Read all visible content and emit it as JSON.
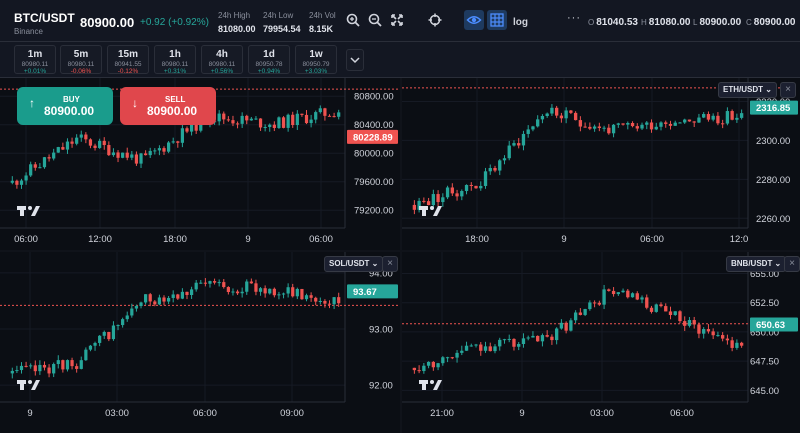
{
  "header": {
    "symbol": "BTC/USDT",
    "exchange": "Binance",
    "last_price": "80900.00",
    "change": "+0.92 (+0.92%)",
    "stats": [
      {
        "label": "24h High",
        "value": "81080.00"
      },
      {
        "label": "24h Low",
        "value": "79954.54"
      },
      {
        "label": "24h Vol",
        "value": "8.15K"
      }
    ],
    "toolbar": {
      "log_label": "log",
      "more_label": "···"
    },
    "ohlc": [
      {
        "key": "O",
        "value": "81040.53"
      },
      {
        "key": "H",
        "value": "81080.00"
      },
      {
        "key": "L",
        "value": "80900.00"
      },
      {
        "key": "C",
        "value": "80900.00"
      }
    ]
  },
  "timeframes": [
    {
      "label": "1m",
      "price": "80980.11",
      "change": "+0.01%",
      "positive": true
    },
    {
      "label": "5m",
      "price": "80980.11",
      "change": "-0.06%",
      "positive": false
    },
    {
      "label": "15m",
      "price": "80941.55",
      "change": "-0.12%",
      "positive": false
    },
    {
      "label": "1h",
      "price": "80980.11",
      "change": "+0.31%",
      "positive": true
    },
    {
      "label": "4h",
      "price": "80980.11",
      "change": "+0.56%",
      "positive": true
    },
    {
      "label": "1d",
      "price": "80950.78",
      "change": "+0.94%",
      "positive": true
    },
    {
      "label": "1w",
      "price": "80950.79",
      "change": "+3.03%",
      "positive": true
    }
  ],
  "trade": {
    "buy_label": "BUY",
    "buy_price": "80900.00",
    "sell_label": "SELL",
    "sell_price": "80900.00"
  },
  "colors": {
    "up": "#26a69a",
    "down": "#ef5350",
    "accent": "#2962ff"
  },
  "panels": [
    {
      "id": "btc",
      "symbol": "",
      "y_ticks": [
        "80800.00",
        "80400.00",
        "80000.00",
        "79600.00",
        "79200.00"
      ],
      "y_tick_values": [
        80800,
        80400,
        80000,
        79600,
        79200
      ],
      "x_ticks": [
        "06:00",
        "12:00",
        "18:00",
        "9",
        "06:00"
      ],
      "price_tag": "80228.89",
      "price_tag_value": 80228.89,
      "tag_color": "#ef5350",
      "ref_line_value": 80900,
      "ylim": [
        78950,
        81000
      ]
    },
    {
      "id": "eth",
      "symbol": "ETH/USDT",
      "y_ticks": [
        "2320.00",
        "2300.00",
        "2280.00",
        "2260.00"
      ],
      "y_tick_values": [
        2320,
        2300,
        2280,
        2260
      ],
      "x_ticks": [
        "18:00",
        "9",
        "06:00",
        "12:0"
      ],
      "price_tag": "2316.85",
      "price_tag_value": 2316.85,
      "tag_color": "#26a69a",
      "ref_line_value": 2327,
      "ylim": [
        2255,
        2330
      ]
    },
    {
      "id": "sol",
      "symbol": "SOL/USDT",
      "y_ticks": [
        "94.00",
        "93.00",
        "92.00"
      ],
      "y_tick_values": [
        94,
        93,
        92
      ],
      "x_ticks": [
        "9",
        "03:00",
        "06:00",
        "09:00"
      ],
      "price_tag": "93.67",
      "price_tag_value": 93.67,
      "tag_color": "#26a69a",
      "ref_line_value": 93.42,
      "ylim": [
        91.7,
        94.3
      ]
    },
    {
      "id": "bnb",
      "symbol": "BNB/USDT",
      "y_ticks": [
        "655.00",
        "652.50",
        "650.00",
        "647.50",
        "645.00"
      ],
      "y_tick_values": [
        655,
        652.5,
        650,
        647.5,
        645
      ],
      "x_ticks": [
        "21:00",
        "9",
        "03:00",
        "06:00"
      ],
      "price_tag": "650.63",
      "price_tag_value": 650.63,
      "tag_color": "#26a69a",
      "ref_line_value": 650.7,
      "ylim": [
        644,
        656.5
      ]
    }
  ]
}
